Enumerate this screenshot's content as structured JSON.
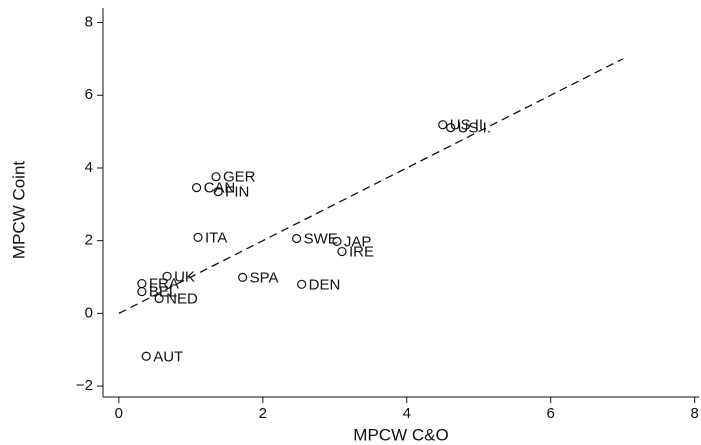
{
  "chart_data": {
    "type": "scatter",
    "x_label": "MPCW C&O",
    "y_label": "MPCW Coint",
    "labels": [
      "US II.",
      "US I.",
      "GER",
      "CAN",
      "FIN",
      "ITA",
      "SWE",
      "JAP",
      "IRE",
      "UK",
      "FRA",
      "BEL",
      "NED",
      "SPA",
      "DEN",
      "AUT"
    ],
    "x": [
      4.5,
      4.61,
      1.35,
      1.08,
      1.38,
      1.1,
      2.47,
      3.03,
      3.1,
      0.67,
      0.32,
      0.32,
      0.56,
      1.72,
      2.54,
      0.38
    ],
    "y": [
      5.19,
      5.11,
      3.76,
      3.46,
      3.35,
      2.09,
      2.06,
      1.98,
      1.7,
      1.02,
      0.82,
      0.6,
      0.41,
      0.99,
      0.8,
      -1.18
    ],
    "color": "#111111",
    "fit_line": {
      "x": [
        0,
        7
      ],
      "y": [
        0,
        7
      ]
    },
    "xlim": [
      -0.22,
      8.06
    ],
    "ylim": [
      -2.3,
      8.4
    ],
    "xticks": [
      0,
      2,
      4,
      6,
      8
    ],
    "yticks": [
      {
        "value": -2,
        "label": "−2"
      },
      0,
      2,
      4,
      6,
      8
    ],
    "grid": false
  }
}
